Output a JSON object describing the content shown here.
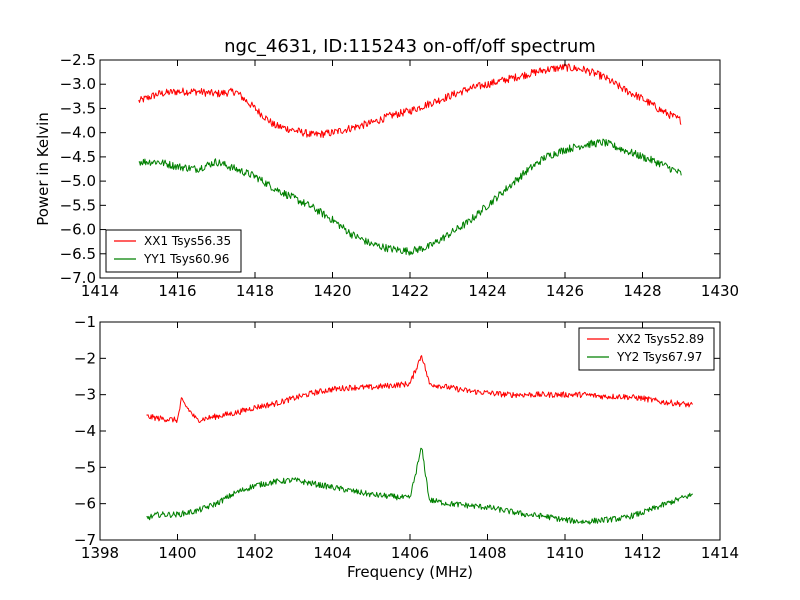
{
  "chart_data": [
    {
      "type": "line",
      "title": "ngc_4631, ID:115243 on-off/off spectrum",
      "xlabel": "",
      "ylabel": "Power in Kelvin",
      "xlim": [
        1414,
        1430
      ],
      "ylim": [
        -7.0,
        -2.5
      ],
      "xticks": [
        1414,
        1416,
        1418,
        1420,
        1422,
        1424,
        1426,
        1428,
        1430
      ],
      "yticks": [
        -7.0,
        -6.5,
        -6.0,
        -5.5,
        -5.0,
        -4.5,
        -4.0,
        -3.5,
        -3.0,
        -2.5
      ],
      "xtick_labels": [
        "1414",
        "1416",
        "1418",
        "1420",
        "1422",
        "1424",
        "1426",
        "1428",
        "1430"
      ],
      "ytick_labels": [
        "−7.0",
        "−6.5",
        "−6.0",
        "−5.5",
        "−5.0",
        "−4.5",
        "−4.0",
        "−3.5",
        "−3.0",
        "−2.5"
      ],
      "grid": false,
      "legend_position": "lower-left",
      "series": [
        {
          "name": "XX1 Tsys56.35",
          "color": "#ff0000",
          "x": [
            1415.0,
            1415.5,
            1416.0,
            1416.5,
            1417.0,
            1417.5,
            1418.0,
            1418.5,
            1419.0,
            1419.5,
            1420.0,
            1420.5,
            1421.0,
            1421.5,
            1422.0,
            1422.5,
            1423.0,
            1423.5,
            1424.0,
            1424.5,
            1425.0,
            1425.5,
            1426.0,
            1426.5,
            1427.0,
            1427.5,
            1428.0,
            1428.5,
            1429.0
          ],
          "y": [
            -3.35,
            -3.2,
            -3.15,
            -3.15,
            -3.2,
            -3.15,
            -3.5,
            -3.85,
            -3.95,
            -4.05,
            -4.0,
            -3.9,
            -3.8,
            -3.65,
            -3.55,
            -3.4,
            -3.25,
            -3.1,
            -3.0,
            -2.9,
            -2.8,
            -2.7,
            -2.65,
            -2.7,
            -2.85,
            -3.1,
            -3.3,
            -3.55,
            -3.75
          ]
        },
        {
          "name": "YY1 Tsys60.96",
          "color": "#008000",
          "x": [
            1415.0,
            1415.5,
            1416.0,
            1416.5,
            1417.0,
            1417.5,
            1418.0,
            1418.5,
            1419.0,
            1419.5,
            1420.0,
            1420.5,
            1421.0,
            1421.5,
            1422.0,
            1422.5,
            1423.0,
            1423.5,
            1424.0,
            1424.5,
            1425.0,
            1425.5,
            1426.0,
            1426.5,
            1427.0,
            1427.5,
            1428.0,
            1428.5,
            1429.0
          ],
          "y": [
            -4.6,
            -4.6,
            -4.7,
            -4.75,
            -4.6,
            -4.75,
            -4.9,
            -5.15,
            -5.35,
            -5.55,
            -5.8,
            -6.1,
            -6.3,
            -6.4,
            -6.45,
            -6.35,
            -6.1,
            -5.85,
            -5.5,
            -5.15,
            -4.8,
            -4.5,
            -4.35,
            -4.25,
            -4.2,
            -4.35,
            -4.5,
            -4.65,
            -4.85
          ]
        }
      ]
    },
    {
      "type": "line",
      "title": "",
      "xlabel": "Frequency (MHz)",
      "ylabel": "",
      "xlim": [
        1398,
        1414
      ],
      "ylim": [
        -7,
        -1
      ],
      "xticks": [
        1398,
        1400,
        1402,
        1404,
        1406,
        1408,
        1410,
        1412,
        1414
      ],
      "yticks": [
        -7,
        -6,
        -5,
        -4,
        -3,
        -2,
        -1
      ],
      "xtick_labels": [
        "1398",
        "1400",
        "1402",
        "1404",
        "1406",
        "1408",
        "1410",
        "1412",
        "1414"
      ],
      "ytick_labels": [
        "−7",
        "−6",
        "−5",
        "−4",
        "−3",
        "−2",
        "−1"
      ],
      "grid": false,
      "legend_position": "upper-right",
      "series": [
        {
          "name": "XX2 Tsys52.89",
          "color": "#ff0000",
          "x": [
            1399.2,
            1399.5,
            1400.0,
            1400.1,
            1400.5,
            1401.0,
            1401.5,
            1402.0,
            1402.5,
            1403.0,
            1403.5,
            1404.0,
            1404.5,
            1405.0,
            1405.5,
            1406.0,
            1406.3,
            1406.5,
            1407.0,
            1407.5,
            1408.0,
            1408.5,
            1409.0,
            1409.5,
            1410.0,
            1410.5,
            1411.0,
            1411.5,
            1412.0,
            1412.5,
            1413.0,
            1413.3
          ],
          "y": [
            -3.6,
            -3.65,
            -3.7,
            -3.15,
            -3.7,
            -3.6,
            -3.5,
            -3.35,
            -3.25,
            -3.1,
            -2.95,
            -2.85,
            -2.8,
            -2.8,
            -2.75,
            -2.7,
            -1.9,
            -2.7,
            -2.8,
            -2.9,
            -2.95,
            -3.0,
            -3.0,
            -3.0,
            -3.0,
            -3.0,
            -3.05,
            -3.05,
            -3.1,
            -3.2,
            -3.25,
            -3.3
          ]
        },
        {
          "name": "YY2 Tsys67.97",
          "color": "#008000",
          "x": [
            1399.2,
            1399.5,
            1400.0,
            1400.5,
            1401.0,
            1401.5,
            1402.0,
            1402.5,
            1403.0,
            1403.5,
            1404.0,
            1404.5,
            1405.0,
            1405.5,
            1406.0,
            1406.3,
            1406.5,
            1407.0,
            1407.5,
            1408.0,
            1408.5,
            1409.0,
            1409.5,
            1410.0,
            1410.5,
            1411.0,
            1411.5,
            1412.0,
            1412.5,
            1413.0,
            1413.3
          ],
          "y": [
            -6.4,
            -6.3,
            -6.3,
            -6.2,
            -6.0,
            -5.7,
            -5.5,
            -5.4,
            -5.35,
            -5.45,
            -5.55,
            -5.65,
            -5.75,
            -5.8,
            -5.85,
            -4.45,
            -5.9,
            -6.0,
            -6.05,
            -6.1,
            -6.2,
            -6.3,
            -6.35,
            -6.45,
            -6.5,
            -6.45,
            -6.4,
            -6.25,
            -6.05,
            -5.85,
            -5.75
          ]
        }
      ]
    }
  ]
}
